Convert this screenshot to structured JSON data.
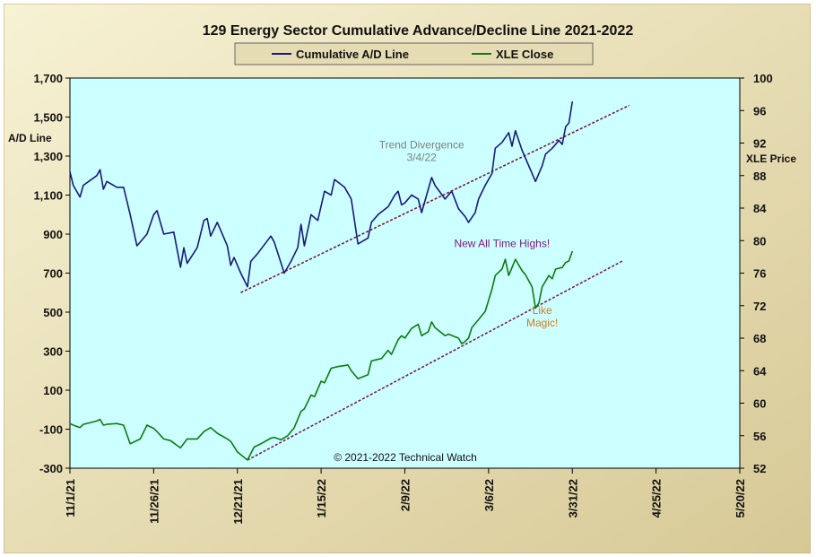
{
  "chart_data": {
    "type": "line",
    "title": "129 Energy Sector Cumulative Advance/Decline Line 2021-2022",
    "copyright": "© 2021-2022  Technical Watch",
    "legend": {
      "placement": "top-center",
      "entries": [
        {
          "label": "Cumulative A/D Line",
          "color": "#1a1a7a"
        },
        {
          "label": "XLE Close",
          "color": "#0f7a0f"
        }
      ]
    },
    "y_left": {
      "label": "A/D Line",
      "range": [
        -300,
        1700
      ],
      "ticks": [
        "1,700",
        "1,500",
        "1,300",
        "1,100",
        "900",
        "700",
        "500",
        "300",
        "100",
        "-100",
        "-300"
      ]
    },
    "y_right": {
      "label": "XLE Price",
      "range": [
        52,
        100
      ],
      "ticks": [
        "100",
        "96",
        "92",
        "88",
        "84",
        "80",
        "76",
        "72",
        "68",
        "64",
        "60",
        "56",
        "52"
      ]
    },
    "x_axis": {
      "range": [
        "2021-11-01",
        "2022-05-20"
      ],
      "ticks": [
        "11/1/21",
        "11/26/21",
        "12/21/21",
        "1/15/22",
        "2/9/22",
        "3/6/22",
        "3/31/22",
        "4/25/22",
        "5/20/22"
      ]
    },
    "grid": false,
    "plot_background": "#ccffff",
    "series": [
      {
        "name": "Cumulative A/D Line",
        "axis": "left",
        "color": "#1a1a7a",
        "points": [
          [
            "2021-11-01",
            1220
          ],
          [
            "2021-11-02",
            1150
          ],
          [
            "2021-11-04",
            1090
          ],
          [
            "2021-11-05",
            1150
          ],
          [
            "2021-11-09",
            1200
          ],
          [
            "2021-11-10",
            1230
          ],
          [
            "2021-11-11",
            1130
          ],
          [
            "2021-11-12",
            1170
          ],
          [
            "2021-11-15",
            1140
          ],
          [
            "2021-11-17",
            1140
          ],
          [
            "2021-11-19",
            1000
          ],
          [
            "2021-11-21",
            840
          ],
          [
            "2021-11-24",
            900
          ],
          [
            "2021-11-26",
            1000
          ],
          [
            "2021-11-27",
            1020
          ],
          [
            "2021-11-29",
            900
          ],
          [
            "2021-12-02",
            910
          ],
          [
            "2021-12-04",
            730
          ],
          [
            "2021-12-05",
            830
          ],
          [
            "2021-12-06",
            750
          ],
          [
            "2021-12-09",
            830
          ],
          [
            "2021-12-11",
            970
          ],
          [
            "2021-12-12",
            980
          ],
          [
            "2021-12-13",
            890
          ],
          [
            "2021-12-15",
            960
          ],
          [
            "2021-12-18",
            840
          ],
          [
            "2021-12-19",
            740
          ],
          [
            "2021-12-20",
            780
          ],
          [
            "2021-12-22",
            700
          ],
          [
            "2021-12-24",
            630
          ],
          [
            "2021-12-25",
            760
          ],
          [
            "2021-12-27",
            800
          ],
          [
            "2021-12-31",
            890
          ],
          [
            "2022-01-01",
            860
          ],
          [
            "2022-01-04",
            700
          ],
          [
            "2022-01-06",
            760
          ],
          [
            "2022-01-08",
            830
          ],
          [
            "2022-01-09",
            950
          ],
          [
            "2022-01-10",
            840
          ],
          [
            "2022-01-12",
            1000
          ],
          [
            "2022-01-14",
            970
          ],
          [
            "2022-01-16",
            1120
          ],
          [
            "2022-01-18",
            1100
          ],
          [
            "2022-01-19",
            1180
          ],
          [
            "2022-01-22",
            1140
          ],
          [
            "2022-01-24",
            1080
          ],
          [
            "2022-01-26",
            850
          ],
          [
            "2022-01-29",
            880
          ],
          [
            "2022-01-30",
            960
          ],
          [
            "2022-02-01",
            1000
          ],
          [
            "2022-02-04",
            1040
          ],
          [
            "2022-02-06",
            1100
          ],
          [
            "2022-02-07",
            1120
          ],
          [
            "2022-02-08",
            1050
          ],
          [
            "2022-02-09",
            1060
          ],
          [
            "2022-02-11",
            1100
          ],
          [
            "2022-02-13",
            1080
          ],
          [
            "2022-02-14",
            1010
          ],
          [
            "2022-02-16",
            1130
          ],
          [
            "2022-02-17",
            1190
          ],
          [
            "2022-02-18",
            1150
          ],
          [
            "2022-02-21",
            1080
          ],
          [
            "2022-02-23",
            1120
          ],
          [
            "2022-02-25",
            1030
          ],
          [
            "2022-02-27",
            990
          ],
          [
            "2022-02-28",
            960
          ],
          [
            "2022-03-02",
            1010
          ],
          [
            "2022-03-03",
            1080
          ],
          [
            "2022-03-05",
            1150
          ],
          [
            "2022-03-07",
            1210
          ],
          [
            "2022-03-08",
            1340
          ],
          [
            "2022-03-10",
            1370
          ],
          [
            "2022-03-12",
            1420
          ],
          [
            "2022-03-13",
            1350
          ],
          [
            "2022-03-14",
            1430
          ],
          [
            "2022-03-16",
            1330
          ],
          [
            "2022-03-20",
            1170
          ],
          [
            "2022-03-22",
            1250
          ],
          [
            "2022-03-23",
            1310
          ],
          [
            "2022-03-25",
            1340
          ],
          [
            "2022-03-27",
            1380
          ],
          [
            "2022-03-28",
            1360
          ],
          [
            "2022-03-29",
            1450
          ],
          [
            "2022-03-30",
            1470
          ],
          [
            "2022-03-31",
            1580
          ]
        ]
      },
      {
        "name": "XLE Close",
        "axis": "right",
        "color": "#0f7a0f",
        "points": [
          [
            "2021-11-01",
            57.5
          ],
          [
            "2021-11-02",
            57.3
          ],
          [
            "2021-11-04",
            57.0
          ],
          [
            "2021-11-05",
            57.4
          ],
          [
            "2021-11-09",
            57.8
          ],
          [
            "2021-11-10",
            58.0
          ],
          [
            "2021-11-11",
            57.3
          ],
          [
            "2021-11-12",
            57.4
          ],
          [
            "2021-11-15",
            57.5
          ],
          [
            "2021-11-17",
            57.3
          ],
          [
            "2021-11-19",
            55.0
          ],
          [
            "2021-11-22",
            55.6
          ],
          [
            "2021-11-24",
            57.3
          ],
          [
            "2021-11-26",
            56.9
          ],
          [
            "2021-11-27",
            56.5
          ],
          [
            "2021-11-29",
            55.6
          ],
          [
            "2021-12-01",
            55.4
          ],
          [
            "2021-12-03",
            54.8
          ],
          [
            "2021-12-04",
            54.5
          ],
          [
            "2021-12-06",
            55.6
          ],
          [
            "2021-12-09",
            55.6
          ],
          [
            "2021-12-11",
            56.5
          ],
          [
            "2021-12-13",
            57.0
          ],
          [
            "2021-12-15",
            56.3
          ],
          [
            "2021-12-18",
            55.6
          ],
          [
            "2021-12-19",
            55.3
          ],
          [
            "2021-12-21",
            54.0
          ],
          [
            "2021-12-24",
            53.0
          ],
          [
            "2021-12-26",
            54.6
          ],
          [
            "2021-12-28",
            55.0
          ],
          [
            "2021-12-31",
            55.7
          ],
          [
            "2022-01-01",
            55.8
          ],
          [
            "2022-01-03",
            55.5
          ],
          [
            "2022-01-05",
            56.0
          ],
          [
            "2022-01-07",
            57.0
          ],
          [
            "2022-01-09",
            59.0
          ],
          [
            "2022-01-10",
            59.3
          ],
          [
            "2022-01-12",
            61.0
          ],
          [
            "2022-01-13",
            60.8
          ],
          [
            "2022-01-15",
            62.7
          ],
          [
            "2022-01-16",
            62.5
          ],
          [
            "2022-01-18",
            64.3
          ],
          [
            "2022-01-20",
            64.5
          ],
          [
            "2022-01-23",
            64.7
          ],
          [
            "2022-01-24",
            64.0
          ],
          [
            "2022-01-26",
            63.0
          ],
          [
            "2022-01-29",
            63.5
          ],
          [
            "2022-01-30",
            65.2
          ],
          [
            "2022-02-02",
            65.5
          ],
          [
            "2022-02-04",
            66.5
          ],
          [
            "2022-02-05",
            66.0
          ],
          [
            "2022-02-07",
            67.8
          ],
          [
            "2022-02-08",
            68.3
          ],
          [
            "2022-02-09",
            68.0
          ],
          [
            "2022-02-11",
            69.2
          ],
          [
            "2022-02-13",
            69.7
          ],
          [
            "2022-02-14",
            68.3
          ],
          [
            "2022-02-16",
            68.8
          ],
          [
            "2022-02-17",
            70.0
          ],
          [
            "2022-02-18",
            69.3
          ],
          [
            "2022-02-21",
            68.3
          ],
          [
            "2022-02-22",
            68.5
          ],
          [
            "2022-02-25",
            68.0
          ],
          [
            "2022-02-26",
            67.3
          ],
          [
            "2022-02-27",
            67.6
          ],
          [
            "2022-02-28",
            68.0
          ],
          [
            "2022-03-01",
            69.3
          ],
          [
            "2022-03-03",
            70.3
          ],
          [
            "2022-03-05",
            71.3
          ],
          [
            "2022-03-07",
            74.0
          ],
          [
            "2022-03-08",
            75.7
          ],
          [
            "2022-03-10",
            76.5
          ],
          [
            "2022-03-11",
            77.7
          ],
          [
            "2022-03-12",
            75.7
          ],
          [
            "2022-03-14",
            77.7
          ],
          [
            "2022-03-16",
            76.3
          ],
          [
            "2022-03-17",
            75.8
          ],
          [
            "2022-03-19",
            74.3
          ],
          [
            "2022-03-20",
            71.7
          ],
          [
            "2022-03-21",
            72.3
          ],
          [
            "2022-03-22",
            74.3
          ],
          [
            "2022-03-24",
            75.7
          ],
          [
            "2022-03-25",
            75.3
          ],
          [
            "2022-03-26",
            76.5
          ],
          [
            "2022-03-28",
            76.7
          ],
          [
            "2022-03-29",
            77.3
          ],
          [
            "2022-03-30",
            77.5
          ],
          [
            "2022-03-31",
            78.7
          ]
        ]
      }
    ],
    "trendlines": [
      {
        "axis": "left",
        "style": "dashed",
        "color": "#7a1a3a",
        "from": [
          "2021-12-22",
          600
        ],
        "to": [
          "2022-04-17",
          1560
        ]
      },
      {
        "axis": "right",
        "style": "dashed",
        "color": "#7a1a5a",
        "from": [
          "2021-12-24",
          53.0
        ],
        "to": [
          "2022-04-15",
          77.5
        ]
      }
    ],
    "annotations": [
      {
        "id": "trend-divergence",
        "lines": [
          "Trend  Divergence",
          "3/4/22"
        ],
        "color": "#7f7f7f",
        "at": [
          "2022-02-14",
          1340
        ],
        "axis": "left"
      },
      {
        "id": "new-highs",
        "lines": [
          "New All Time Highs!"
        ],
        "color": "#7a1a7a",
        "at": [
          "2022-03-10",
          79.2
        ],
        "axis": "right"
      },
      {
        "id": "like-magic",
        "lines": [
          "Like",
          "Magic!"
        ],
        "color": "#d9791a",
        "at": [
          "2022-03-22",
          71.0
        ],
        "axis": "right"
      }
    ]
  }
}
